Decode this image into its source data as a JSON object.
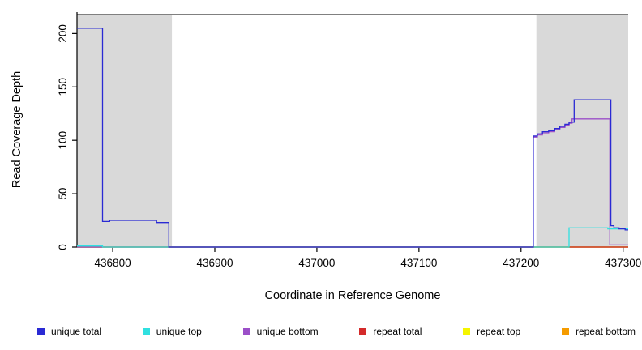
{
  "chart_data": {
    "type": "line",
    "title": "",
    "xlabel": "Coordinate in Reference Genome",
    "ylabel": "Read Coverage Depth",
    "xlim": [
      436765,
      437305
    ],
    "ylim": [
      0,
      220
    ],
    "x_ticks": [
      "436800",
      "436900",
      "437000",
      "437100",
      "437200",
      "437300"
    ],
    "y_ticks": [
      "0",
      "50",
      "100",
      "150",
      "200"
    ],
    "grid": false,
    "legend_position": "bottom",
    "shaded_regions": [
      {
        "name": "left-repeat-region",
        "x": [
          436765,
          436858
        ],
        "color": "#D9D9D9"
      },
      {
        "name": "right-repeat-region",
        "x": [
          437215,
          437305
        ],
        "color": "#D9D9D9"
      }
    ],
    "ceiling_line": {
      "value": 218,
      "color": "#808080"
    },
    "series": [
      {
        "name": "repeat bottom",
        "color": "#F59B00",
        "points": [
          [
            436765,
            0
          ],
          [
            437305,
            0
          ]
        ]
      },
      {
        "name": "repeat top",
        "color": "#F5F500",
        "points": [
          [
            436765,
            0
          ],
          [
            437305,
            0
          ]
        ]
      },
      {
        "name": "repeat total",
        "color": "#D42A2A",
        "points": [
          [
            436765,
            0
          ],
          [
            437305,
            0
          ]
        ]
      },
      {
        "name": "unique bottom",
        "color": "#9B4FC8",
        "points": [
          [
            436765,
            0
          ],
          [
            437212,
            0
          ],
          [
            437212,
            103
          ],
          [
            437216,
            103
          ],
          [
            437216,
            105
          ],
          [
            437221,
            105
          ],
          [
            437221,
            107
          ],
          [
            437227,
            107
          ],
          [
            437227,
            108
          ],
          [
            437233,
            108
          ],
          [
            437233,
            110
          ],
          [
            437238,
            110
          ],
          [
            437238,
            112
          ],
          [
            437243,
            112
          ],
          [
            437243,
            114
          ],
          [
            437247,
            114
          ],
          [
            437247,
            116
          ],
          [
            437250,
            116
          ],
          [
            437250,
            120
          ],
          [
            437287,
            120
          ],
          [
            437287,
            2
          ],
          [
            437305,
            2
          ]
        ]
      },
      {
        "name": "unique top",
        "color": "#30E0E0",
        "points": [
          [
            436765,
            1
          ],
          [
            436790,
            1
          ],
          [
            436790,
            0
          ],
          [
            437247,
            0
          ],
          [
            437247,
            18
          ],
          [
            437285,
            18
          ],
          [
            437285,
            17
          ],
          [
            437305,
            17
          ]
        ]
      },
      {
        "name": "unique total",
        "color": "#2A2AD4",
        "points": [
          [
            436765,
            205
          ],
          [
            436790,
            205
          ],
          [
            436790,
            24
          ],
          [
            436797,
            24
          ],
          [
            436797,
            25
          ],
          [
            436843,
            25
          ],
          [
            436843,
            23
          ],
          [
            436855,
            23
          ],
          [
            436855,
            0
          ],
          [
            437212,
            0
          ],
          [
            437212,
            104
          ],
          [
            437216,
            104
          ],
          [
            437216,
            106
          ],
          [
            437221,
            106
          ],
          [
            437221,
            108
          ],
          [
            437227,
            108
          ],
          [
            437227,
            109
          ],
          [
            437233,
            109
          ],
          [
            437233,
            111
          ],
          [
            437238,
            111
          ],
          [
            437238,
            113
          ],
          [
            437243,
            113
          ],
          [
            437243,
            115
          ],
          [
            437247,
            115
          ],
          [
            437247,
            117
          ],
          [
            437252,
            117
          ],
          [
            437252,
            138
          ],
          [
            437288,
            138
          ],
          [
            437288,
            20
          ],
          [
            437291,
            20
          ],
          [
            437291,
            18
          ],
          [
            437296,
            18
          ],
          [
            437296,
            17
          ],
          [
            437302,
            17
          ],
          [
            437302,
            16
          ],
          [
            437305,
            16
          ]
        ]
      }
    ],
    "legend": [
      {
        "label": "unique total",
        "color": "#2A2AD4"
      },
      {
        "label": "unique top",
        "color": "#30E0E0"
      },
      {
        "label": "unique bottom",
        "color": "#9B4FC8"
      },
      {
        "label": "repeat total",
        "color": "#D42A2A"
      },
      {
        "label": "repeat top",
        "color": "#F5F500"
      },
      {
        "label": "repeat bottom",
        "color": "#F59B00"
      }
    ]
  }
}
